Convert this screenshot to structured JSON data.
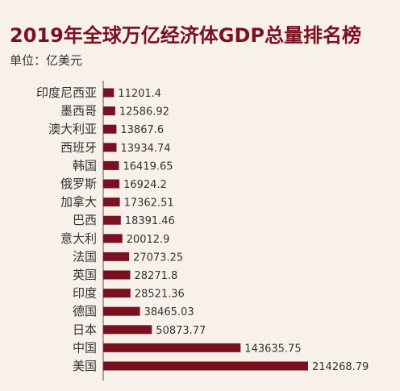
{
  "header": {
    "title": "2019年全球万亿经济体GDP总量排名榜",
    "unit": "单位：亿美元"
  },
  "colors": {
    "bar": "#7a1020",
    "title": "#7a1020",
    "axis": "#555555",
    "background": "#f7f1ea"
  },
  "chart_data": {
    "type": "bar",
    "orientation": "horizontal",
    "title": "2019年全球万亿经济体GDP总量排名榜",
    "subtitle": "单位：亿美元",
    "categories": [
      "印度尼西亚",
      "墨西哥",
      "澳大利亚",
      "西班牙",
      "韩国",
      "俄罗斯",
      "加拿大",
      "巴西",
      "意大利",
      "法国",
      "英国",
      "印度",
      "德国",
      "日本",
      "中国",
      "美国"
    ],
    "values": [
      11201.4,
      12586.92,
      13867.6,
      13934.74,
      16419.65,
      16924.2,
      17362.51,
      18391.46,
      20012.9,
      27073.25,
      28271.8,
      28521.36,
      38465.03,
      50873.77,
      143635.75,
      214268.79
    ],
    "value_labels": [
      "11201.4",
      "12586.92",
      "13867.6",
      "13934.74",
      "16419.65",
      "16924.2",
      "17362.51",
      "18391.46",
      "20012.9",
      "27073.25",
      "28271.8",
      "28521.36",
      "38465.03",
      "50873.77",
      "143635.75",
      "214268.79"
    ],
    "xlim": [
      0,
      214268.79
    ],
    "grid": false,
    "legend": "none"
  }
}
